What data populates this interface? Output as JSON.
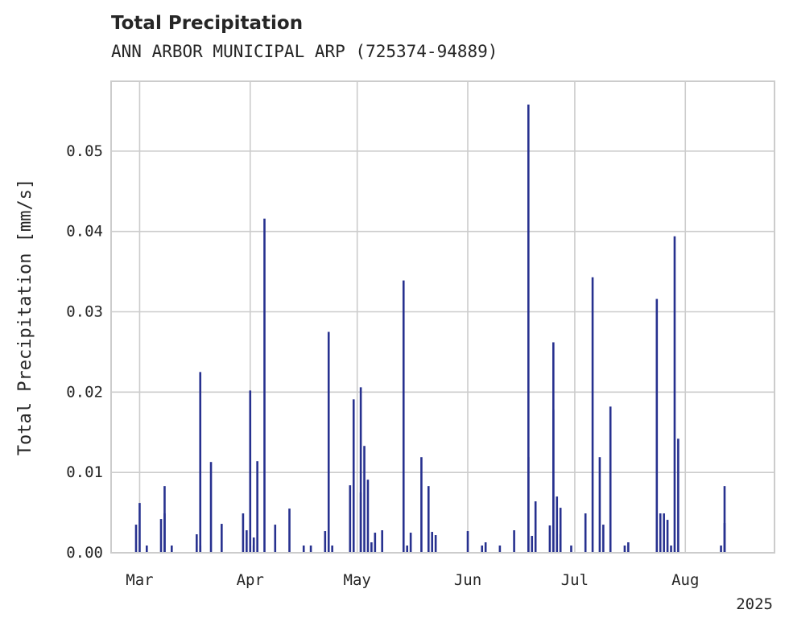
{
  "chart_data": {
    "type": "bar",
    "title": "Total Precipitation",
    "subtitle": "ANN ARBOR MUNICIPAL ARP (725374-94889)",
    "ylabel": "Total Precipitation [mm/s]",
    "xlabel": "",
    "year_label": "2025",
    "xlim": [
      "2025-02-21",
      "2025-08-26"
    ],
    "ylim": [
      0,
      0.0587
    ],
    "yticks": [
      0,
      0.01,
      0.02,
      0.03,
      0.04,
      0.05
    ],
    "ytick_labels": [
      "0.00",
      "0.01",
      "0.02",
      "0.03",
      "0.04",
      "0.05"
    ],
    "xticks": [
      "2025-03-01",
      "2025-04-01",
      "2025-05-01",
      "2025-06-01",
      "2025-07-01",
      "2025-08-01"
    ],
    "xtick_labels": [
      "Mar",
      "Apr",
      "May",
      "Jun",
      "Jul",
      "Aug"
    ],
    "grid": true,
    "colors": {
      "bar": "#27318f",
      "grid": "#cccccc",
      "spine": "#cccccc",
      "text": "#262626"
    },
    "series": [
      {
        "x": [
          "2025-02-28",
          "2025-03-01",
          "2025-03-03",
          "2025-03-07",
          "2025-03-08",
          "2025-03-08",
          "2025-03-10",
          "2025-03-17",
          "2025-03-18",
          "2025-03-18",
          "2025-03-21",
          "2025-03-24",
          "2025-03-30",
          "2025-03-31",
          "2025-04-01",
          "2025-04-02",
          "2025-04-02",
          "2025-04-03",
          "2025-04-05",
          "2025-04-08",
          "2025-04-12",
          "2025-04-16",
          "2025-04-18",
          "2025-04-22",
          "2025-04-23",
          "2025-04-24",
          "2025-04-29",
          "2025-04-30",
          "2025-05-02",
          "2025-05-02",
          "2025-05-03",
          "2025-05-04",
          "2025-05-05",
          "2025-05-06",
          "2025-05-08",
          "2025-05-14",
          "2025-05-15",
          "2025-05-16",
          "2025-05-19",
          "2025-05-21",
          "2025-05-22",
          "2025-05-23",
          "2025-06-01",
          "2025-06-05",
          "2025-06-06",
          "2025-06-10",
          "2025-06-14",
          "2025-06-18",
          "2025-06-18",
          "2025-06-19",
          "2025-06-20",
          "2025-06-24",
          "2025-06-25",
          "2025-06-25",
          "2025-06-26",
          "2025-06-27",
          "2025-06-27",
          "2025-06-30",
          "2025-07-04",
          "2025-07-06",
          "2025-07-08",
          "2025-07-09",
          "2025-07-11",
          "2025-07-15",
          "2025-07-16",
          "2025-07-24",
          "2025-07-25",
          "2025-07-26",
          "2025-07-27",
          "2025-07-28",
          "2025-07-29",
          "2025-07-30",
          "2025-08-11",
          "2025-08-12",
          "2025-08-12"
        ],
        "values": [
          0.0035,
          0.0062,
          0.0009,
          0.0042,
          0.0083,
          0.0049,
          0.0009,
          0.0023,
          0.0225,
          0.0009,
          0.0113,
          0.0036,
          0.0049,
          0.0028,
          0.0202,
          0.0019,
          0.0009,
          0.0114,
          0.0416,
          0.0035,
          0.0055,
          0.0009,
          0.0009,
          0.0027,
          0.0275,
          0.0009,
          0.0084,
          0.0191,
          0.0206,
          0.0075,
          0.0133,
          0.0091,
          0.0013,
          0.0025,
          0.0028,
          0.0339,
          0.0009,
          0.0025,
          0.0119,
          0.0083,
          0.0026,
          0.0022,
          0.0027,
          0.0009,
          0.0013,
          0.0009,
          0.0028,
          0.0558,
          0.0119,
          0.0021,
          0.0064,
          0.0034,
          0.0178,
          0.0262,
          0.007,
          0.0023,
          0.0056,
          0.0009,
          0.0049,
          0.0343,
          0.0119,
          0.0035,
          0.0182,
          0.0009,
          0.0013,
          0.0316,
          0.0049,
          0.0049,
          0.0041,
          0.0009,
          0.0394,
          0.0142,
          0.0009,
          0.0083,
          0.0037
        ]
      }
    ]
  }
}
